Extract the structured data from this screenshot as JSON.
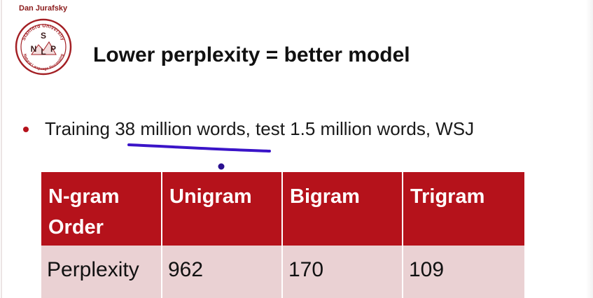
{
  "slide": {
    "author": "Dan Jurafsky",
    "logo": {
      "ring_text": "Stanford University",
      "top_letter": "S",
      "center_letters": [
        "N",
        "L",
        "P"
      ],
      "bottom_text": "Natural Language Processing",
      "color": "#a31f24"
    },
    "title": "Lower perplexity = better model",
    "bullet": {
      "text_before": "Training ",
      "underlined": "38 million words",
      "text_after": ", test 1.5 million words, WSJ"
    },
    "table": {
      "headers": [
        "N-gram Order",
        "Unigram",
        "Bigram",
        "Trigram"
      ],
      "rows": [
        [
          "Perplexity",
          "962",
          "170",
          "109"
        ]
      ]
    },
    "colors": {
      "header_bg": "#b5121b",
      "row_bg": "#ead1d3",
      "bullet": "#b5121b",
      "annotation_ink": "#3a14c8"
    }
  }
}
